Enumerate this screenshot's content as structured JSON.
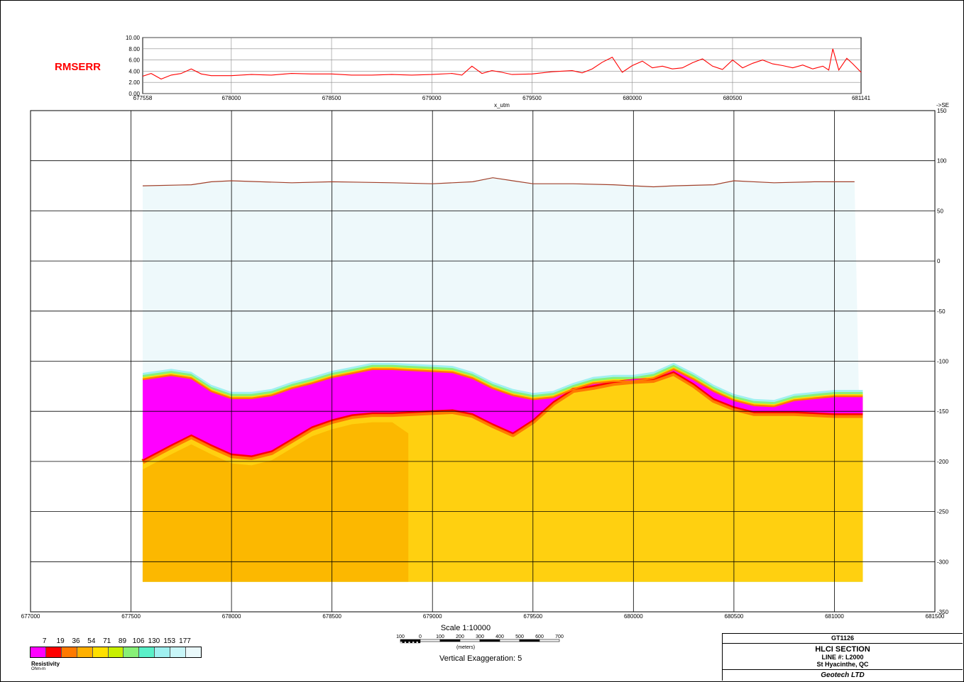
{
  "rms_panel": {
    "label": "RMSERR",
    "x_label": "x_utm",
    "y_ticks": [
      "10.00",
      "8.00",
      "6.00",
      "4.00",
      "2.00",
      "0.00"
    ],
    "x_ticks": [
      "677558",
      "678000",
      "678500",
      "679000",
      "679500",
      "680000",
      "680500",
      "681141"
    ],
    "line_color": "#ff0000"
  },
  "section": {
    "direction_label": "->SE",
    "x_ticks": [
      "677000",
      "677500",
      "678000",
      "678500",
      "679000",
      "679500",
      "680000",
      "680500",
      "681000",
      "681500"
    ],
    "y_ticks": [
      "150",
      "100",
      "50",
      "0",
      "-50",
      "-100",
      "-150",
      "-200",
      "-250",
      "-300",
      "-350"
    ],
    "colors": {
      "air": "#eef9fb",
      "conductor": "#ff00ff",
      "basement": "#ffd010",
      "basement_dark": "#fcb800",
      "topography": "#a0402a"
    }
  },
  "legend": {
    "values": [
      "7",
      "19",
      "36",
      "54",
      "71",
      "89",
      "106",
      "130",
      "153",
      "177"
    ],
    "title": "Resistivity",
    "unit": "Ohm-m",
    "colors": [
      "#ff00ff",
      "#ff0000",
      "#ff7a00",
      "#ffb000",
      "#ffe000",
      "#c8f000",
      "#88f078",
      "#5af0c8",
      "#a0f0f0",
      "#c8f6f8",
      "#eaf9fb"
    ]
  },
  "scale": {
    "title": "Scale 1:10000",
    "bar_labels": [
      "100",
      "0",
      "100",
      "200",
      "300",
      "400",
      "500",
      "600",
      "700"
    ],
    "units": "(meters)",
    "vertical_exaggeration": "Vertical Exaggeration: 5"
  },
  "title_block": {
    "project": "GT1126",
    "title": "HLCI SECTION",
    "line": "LINE #:  L2000",
    "location": "St Hyacinthe, QC",
    "company": "Geotech LTD"
  },
  "chart_data": [
    {
      "type": "line",
      "title": "RMSERR",
      "xlabel": "x_utm",
      "ylabel": "",
      "xlim": [
        677558,
        681141
      ],
      "ylim": [
        0,
        10
      ],
      "series": [
        {
          "name": "RMSERR",
          "x": [
            677558,
            677600,
            677650,
            677700,
            677750,
            677800,
            677850,
            677900,
            678000,
            678100,
            678200,
            678300,
            678400,
            678500,
            678600,
            678700,
            678800,
            678900,
            679000,
            679100,
            679150,
            679200,
            679250,
            679300,
            679350,
            679400,
            679500,
            679600,
            679700,
            679750,
            679800,
            679850,
            679900,
            679950,
            680000,
            680050,
            680100,
            680150,
            680200,
            680250,
            680300,
            680350,
            680400,
            680450,
            680500,
            680550,
            680600,
            680650,
            680700,
            680750,
            680800,
            680850,
            680900,
            680950,
            680980,
            681000,
            681030,
            681070,
            681100,
            681141
          ],
          "y": [
            3.1,
            3.6,
            2.6,
            3.3,
            3.6,
            4.4,
            3.5,
            3.2,
            3.2,
            3.4,
            3.3,
            3.6,
            3.5,
            3.5,
            3.3,
            3.3,
            3.4,
            3.3,
            3.4,
            3.6,
            3.3,
            4.9,
            3.6,
            4.1,
            3.8,
            3.4,
            3.5,
            3.9,
            4.1,
            3.7,
            4.4,
            5.6,
            6.5,
            3.8,
            5.0,
            5.8,
            4.6,
            4.9,
            4.4,
            4.6,
            5.5,
            6.2,
            4.9,
            4.3,
            6.0,
            4.6,
            5.4,
            6.0,
            5.3,
            5.0,
            4.6,
            5.1,
            4.4,
            4.9,
            4.2,
            8.0,
            4.2,
            6.3,
            5.3,
            3.8
          ]
        }
      ]
    },
    {
      "type": "heatmap",
      "title": "HLCI SECTION",
      "xlabel": "",
      "ylabel": "",
      "xlim": [
        677000,
        681500
      ],
      "ylim": [
        -350,
        150
      ],
      "series": [
        {
          "name": "topography",
          "x": [
            677558,
            677800,
            677900,
            678000,
            678300,
            678500,
            678800,
            679000,
            679200,
            679300,
            679400,
            679500,
            679700,
            679900,
            680000,
            680100,
            680200,
            680400,
            680500,
            680700,
            680900,
            681100
          ],
          "y": [
            75,
            76,
            79,
            80,
            78,
            79,
            78,
            77,
            79,
            83,
            80,
            77,
            77,
            76,
            75,
            74,
            75,
            76,
            80,
            78,
            79,
            79
          ]
        },
        {
          "name": "conductor_top",
          "x": [
            677558,
            677700,
            677800,
            677900,
            678000,
            678100,
            678200,
            678300,
            678400,
            678500,
            678600,
            678700,
            678800,
            678900,
            679000,
            679100,
            679200,
            679300,
            679400,
            679500,
            679600,
            679700,
            679800,
            679900,
            680000,
            680100,
            680200,
            680300,
            680400,
            680500,
            680600,
            680700,
            680800,
            680900,
            681000,
            681141
          ],
          "y": [
            -118,
            -114,
            -117,
            -130,
            -137,
            -137,
            -134,
            -127,
            -122,
            -116,
            -112,
            -108,
            -108,
            -109,
            -110,
            -111,
            -117,
            -127,
            -134,
            -138,
            -136,
            -128,
            -122,
            -120,
            -120,
            -117,
            -108,
            -118,
            -130,
            -139,
            -144,
            -145,
            -139,
            -137,
            -135,
            -135
          ]
        },
        {
          "name": "conductor_base",
          "x": [
            677558,
            677700,
            677800,
            677900,
            678000,
            678100,
            678200,
            678300,
            678400,
            678500,
            678600,
            678700,
            678800,
            678900,
            679000,
            679100,
            679200,
            679300,
            679400,
            679500,
            679600,
            679700,
            679800,
            679900,
            680000,
            680100,
            680200,
            680300,
            680400,
            680500,
            680600,
            680700,
            680800,
            680900,
            681000,
            681141
          ],
          "y": [
            -198,
            -183,
            -173,
            -183,
            -192,
            -194,
            -189,
            -177,
            -165,
            -158,
            -153,
            -151,
            -151,
            -150,
            -149,
            -148,
            -152,
            -162,
            -171,
            -158,
            -140,
            -127,
            -124,
            -120,
            -118,
            -117,
            -110,
            -122,
            -137,
            -145,
            -150,
            -150,
            -150,
            -151,
            -152,
            -152
          ]
        },
        {
          "name": "section_bottom",
          "x": [
            677558,
            681141
          ],
          "y": [
            -320,
            -320
          ]
        }
      ]
    }
  ]
}
